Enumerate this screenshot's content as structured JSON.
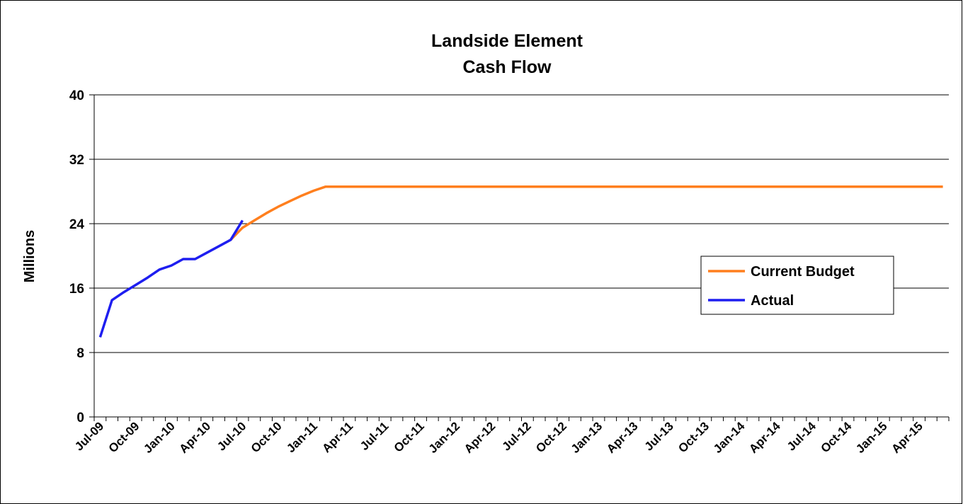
{
  "chart_data": {
    "type": "line",
    "title": [
      "Landside Element",
      "Cash Flow"
    ],
    "y_label": "Millions",
    "categories": [
      "Jul-09",
      null,
      null,
      "Oct-09",
      null,
      null,
      "Jan-10",
      null,
      null,
      "Apr-10",
      null,
      null,
      "Jul-10",
      null,
      null,
      "Oct-10",
      null,
      null,
      "Jan-11",
      null,
      null,
      "Apr-11",
      null,
      null,
      "Jul-11",
      null,
      null,
      "Oct-11",
      null,
      null,
      "Jan-12",
      null,
      null,
      "Apr-12",
      null,
      null,
      "Jul-12",
      null,
      null,
      "Oct-12",
      null,
      null,
      "Jan-13",
      null,
      null,
      "Apr-13",
      null,
      null,
      "Jul-13",
      null,
      null,
      "Oct-13",
      null,
      null,
      "Jan-14",
      null,
      null,
      "Apr-14",
      null,
      null,
      "Jul-14",
      null,
      null,
      "Oct-14",
      null,
      null,
      "Jan-15",
      null,
      null,
      "Apr-15",
      null,
      null
    ],
    "series": [
      {
        "name": "Current Budget",
        "color": "#ff7f1e",
        "values": [
          null,
          null,
          null,
          null,
          null,
          null,
          null,
          null,
          null,
          null,
          null,
          22.0,
          23.5,
          24.4,
          25.3,
          26.1,
          26.8,
          27.5,
          28.1,
          28.6,
          28.6,
          28.6,
          28.6,
          28.6,
          28.6,
          28.6,
          28.6,
          28.6,
          28.6,
          28.6,
          28.6,
          28.6,
          28.6,
          28.6,
          28.6,
          28.6,
          28.6,
          28.6,
          28.6,
          28.6,
          28.6,
          28.6,
          28.6,
          28.6,
          28.6,
          28.6,
          28.6,
          28.6,
          28.6,
          28.6,
          28.6,
          28.6,
          28.6,
          28.6,
          28.6,
          28.6,
          28.6,
          28.6,
          28.6,
          28.6,
          28.6,
          28.6,
          28.6,
          28.6,
          28.6,
          28.6,
          28.6,
          28.6,
          28.6,
          28.6,
          28.6,
          28.6
        ]
      },
      {
        "name": "Actual",
        "color": "#1e1ef0",
        "values": [
          9.9,
          14.5,
          15.5,
          16.4,
          17.3,
          18.3,
          18.8,
          19.6,
          19.6,
          20.4,
          21.2,
          22.0,
          24.4,
          null,
          null,
          null,
          null,
          null,
          null,
          null,
          null,
          null,
          null,
          null,
          null,
          null,
          null,
          null,
          null,
          null,
          null,
          null,
          null,
          null,
          null,
          null,
          null,
          null,
          null,
          null,
          null,
          null,
          null,
          null,
          null,
          null,
          null,
          null,
          null,
          null,
          null,
          null,
          null,
          null,
          null,
          null,
          null,
          null,
          null,
          null,
          null,
          null,
          null,
          null,
          null,
          null,
          null,
          null,
          null,
          null,
          null,
          null
        ]
      }
    ],
    "ylim": [
      0,
      40
    ],
    "yticks": [
      0,
      8,
      16,
      24,
      32,
      40
    ],
    "grid": true,
    "legend": "right"
  }
}
